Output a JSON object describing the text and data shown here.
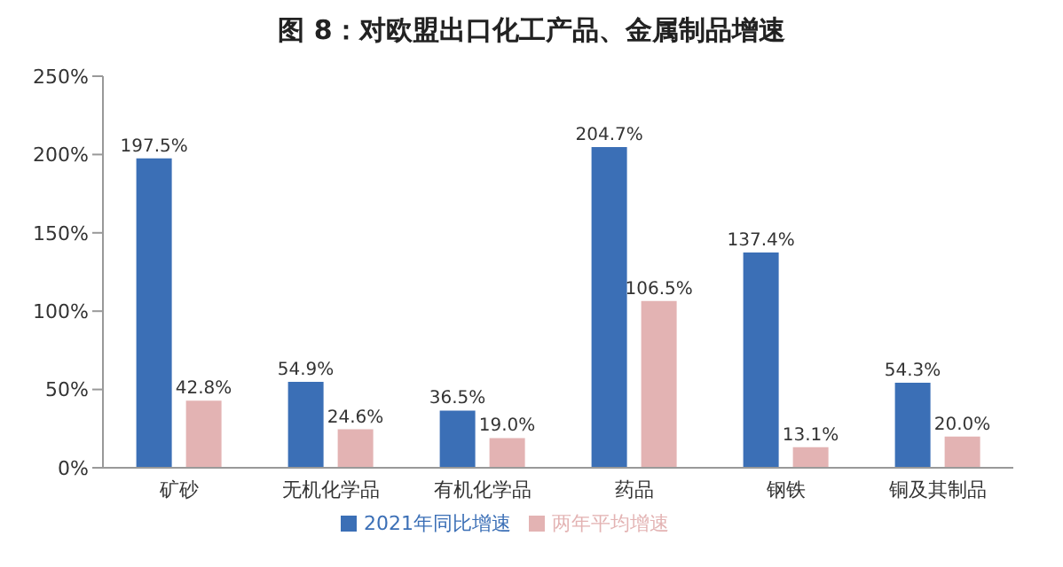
{
  "chart_data": {
    "type": "bar",
    "title": "图 8：对欧盟出口化工产品、金属制品增速",
    "categories": [
      "矿砂",
      "无机化学品",
      "有机化学品",
      "药品",
      "钢铁",
      "铜及其制品"
    ],
    "series": [
      {
        "name": "2021年同比增速",
        "color": "#3b6fb6",
        "values": [
          197.5,
          54.9,
          36.5,
          204.7,
          137.4,
          54.3
        ],
        "value_labels": [
          "197.5%",
          "54.9%",
          "36.5%",
          "204.7%",
          "137.4%",
          "54.3%"
        ]
      },
      {
        "name": "两年平均增速",
        "color": "#e3b3b3",
        "values": [
          42.8,
          24.6,
          19.0,
          106.5,
          13.1,
          20.0
        ],
        "value_labels": [
          "42.8%",
          "24.6%",
          "19.0%",
          "106.5%",
          "13.1%",
          "20.0%"
        ]
      }
    ],
    "ylim": [
      0,
      250
    ],
    "yticks": [
      {
        "value": 0,
        "label": "0%"
      },
      {
        "value": 50,
        "label": "50%"
      },
      {
        "value": 100,
        "label": "100%"
      },
      {
        "value": 150,
        "label": "150%"
      },
      {
        "value": 200,
        "label": "200%"
      },
      {
        "value": 250,
        "label": "250%"
      }
    ],
    "grid": false,
    "legend": "bottom"
  }
}
